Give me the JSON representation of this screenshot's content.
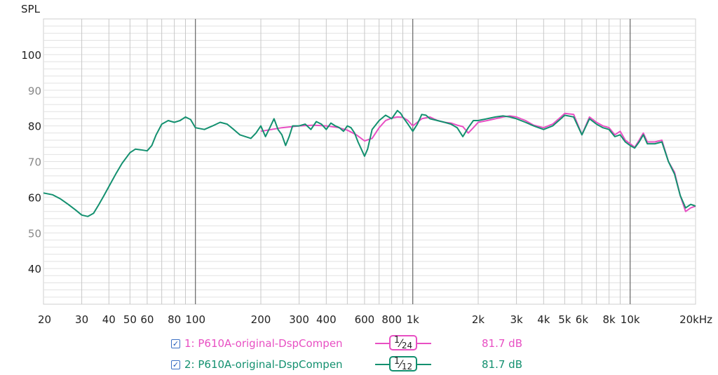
{
  "chart_data": {
    "type": "line",
    "ylabel": "SPL",
    "x_scale": "log",
    "xlim": [
      20,
      20000
    ],
    "ylim": [
      30,
      110
    ],
    "x_ticks": [
      {
        "v": 20,
        "label": "20"
      },
      {
        "v": 30,
        "label": "30"
      },
      {
        "v": 40,
        "label": "40"
      },
      {
        "v": 50,
        "label": "50"
      },
      {
        "v": 60,
        "label": "60"
      },
      {
        "v": 80,
        "label": "80"
      },
      {
        "v": 100,
        "label": "100"
      },
      {
        "v": 200,
        "label": "200"
      },
      {
        "v": 300,
        "label": "300"
      },
      {
        "v": 400,
        "label": "400"
      },
      {
        "v": 600,
        "label": "600"
      },
      {
        "v": 800,
        "label": "800"
      },
      {
        "v": 1000,
        "label": "1k"
      },
      {
        "v": 2000,
        "label": "2k"
      },
      {
        "v": 3000,
        "label": "3k"
      },
      {
        "v": 4000,
        "label": "4k"
      },
      {
        "v": 5000,
        "label": "5k"
      },
      {
        "v": 6000,
        "label": "6k"
      },
      {
        "v": 8000,
        "label": "8k"
      },
      {
        "v": 10000,
        "label": "10k"
      },
      {
        "v": 20000,
        "label": "20kHz"
      }
    ],
    "y_ticks": [
      {
        "v": 100,
        "label": "100",
        "muted": false
      },
      {
        "v": 90,
        "label": "90",
        "muted": true
      },
      {
        "v": 80,
        "label": "80",
        "muted": false
      },
      {
        "v": 70,
        "label": "70",
        "muted": true
      },
      {
        "v": 60,
        "label": "60",
        "muted": false
      },
      {
        "v": 50,
        "label": "50",
        "muted": true
      },
      {
        "v": 40,
        "label": "40",
        "muted": false
      }
    ],
    "grid": true,
    "series": [
      {
        "name": "1: P610A-original-DspCompen",
        "smoothing": "1/24",
        "level": "81.7 dB",
        "color": "#e84fc3",
        "x": [
          200,
          250,
          300,
          350,
          400,
          450,
          500,
          550,
          600,
          650,
          700,
          750,
          800,
          850,
          900,
          950,
          1000,
          1100,
          1200,
          1300,
          1400,
          1500,
          1600,
          1700,
          1800,
          1900,
          2000,
          2200,
          2400,
          2600,
          2800,
          3000,
          3300,
          3600,
          4000,
          4400,
          4800,
          5000,
          5500,
          6000,
          6500,
          7000,
          7500,
          8000,
          8500,
          9000,
          9500,
          10000,
          10500,
          11000,
          11500,
          12000,
          13000,
          14000,
          15000,
          16000,
          17000,
          18000,
          19000,
          20000
        ],
        "y": [
          78.5,
          79.5,
          80.0,
          80.2,
          80.0,
          79.6,
          78.8,
          77.5,
          75.8,
          76.5,
          79.5,
          81.5,
          82.2,
          82.5,
          82.4,
          81.5,
          80.0,
          82.0,
          82.5,
          81.5,
          81.0,
          80.8,
          80.2,
          79.8,
          78.0,
          79.5,
          81.0,
          81.5,
          82.0,
          82.5,
          82.8,
          82.5,
          81.5,
          80.2,
          79.5,
          80.5,
          82.5,
          83.5,
          83.2,
          77.5,
          82.5,
          81.0,
          80.0,
          79.5,
          77.5,
          78.5,
          76.0,
          75.0,
          74.0,
          76.0,
          78.0,
          75.5,
          75.5,
          76.0,
          70.0,
          67.0,
          60.5,
          56.0,
          57.0,
          57.5
        ]
      },
      {
        "name": "2: P610A-original-DspCompen",
        "smoothing": "1/12",
        "level": "81.7 dB",
        "color": "#13906f",
        "x": [
          20,
          22,
          24,
          26,
          28,
          30,
          32,
          34,
          36,
          38,
          40,
          43,
          46,
          50,
          53,
          56,
          60,
          63,
          66,
          70,
          75,
          80,
          85,
          90,
          95,
          100,
          110,
          120,
          130,
          140,
          150,
          160,
          170,
          180,
          190,
          200,
          210,
          220,
          230,
          240,
          250,
          260,
          270,
          280,
          300,
          320,
          340,
          360,
          380,
          400,
          420,
          440,
          460,
          480,
          500,
          520,
          540,
          560,
          580,
          600,
          620,
          650,
          700,
          750,
          800,
          850,
          880,
          900,
          950,
          1000,
          1050,
          1100,
          1150,
          1200,
          1300,
          1400,
          1500,
          1600,
          1700,
          1800,
          1900,
          2000,
          2200,
          2400,
          2600,
          2800,
          3000,
          3300,
          3600,
          4000,
          4400,
          4800,
          5000,
          5500,
          6000,
          6500,
          7000,
          7500,
          8000,
          8500,
          9000,
          9500,
          10000,
          10500,
          11000,
          11500,
          12000,
          13000,
          14000,
          15000,
          16000,
          17000,
          18000,
          19000,
          20000
        ],
        "y": [
          61.2,
          60.7,
          59.5,
          58.0,
          56.5,
          55.0,
          54.6,
          55.5,
          58.0,
          60.5,
          63.0,
          66.5,
          69.5,
          72.5,
          73.5,
          73.3,
          73.0,
          74.5,
          77.5,
          80.5,
          81.5,
          81.0,
          81.5,
          82.5,
          81.8,
          79.5,
          79.0,
          80.0,
          81.0,
          80.5,
          79.0,
          77.5,
          77.0,
          76.5,
          78.0,
          80.0,
          77.0,
          79.5,
          82.0,
          79.0,
          77.5,
          74.5,
          77.0,
          80.0,
          80.0,
          80.5,
          79.0,
          81.2,
          80.5,
          79.0,
          80.8,
          80.0,
          79.5,
          78.5,
          80.0,
          79.5,
          78.0,
          75.5,
          73.5,
          71.5,
          73.5,
          79.0,
          81.5,
          83.0,
          82.0,
          84.3,
          83.5,
          82.5,
          80.5,
          78.5,
          80.5,
          83.2,
          83.0,
          82.0,
          81.5,
          81.0,
          80.5,
          79.5,
          77.0,
          79.5,
          81.5,
          81.5,
          82.0,
          82.5,
          82.8,
          82.5,
          82.0,
          81.0,
          80.0,
          79.0,
          80.0,
          82.0,
          83.0,
          82.5,
          77.5,
          82.0,
          80.5,
          79.5,
          79.0,
          77.0,
          77.5,
          75.5,
          74.5,
          73.8,
          75.5,
          77.5,
          75.0,
          75.0,
          75.5,
          70.0,
          66.5,
          60.5,
          57.0,
          58.0,
          57.5
        ]
      }
    ]
  },
  "legend": {
    "items": [
      {
        "name": "1: P610A-original-DspCompen",
        "smooth_num": "1",
        "smooth_den": "24",
        "level": "81.7 dB",
        "color": "#e84fc3"
      },
      {
        "name": "2: P610A-original-DspCompen",
        "smooth_num": "1",
        "smooth_den": "12",
        "level": "81.7 dB",
        "color": "#13906f"
      }
    ]
  }
}
